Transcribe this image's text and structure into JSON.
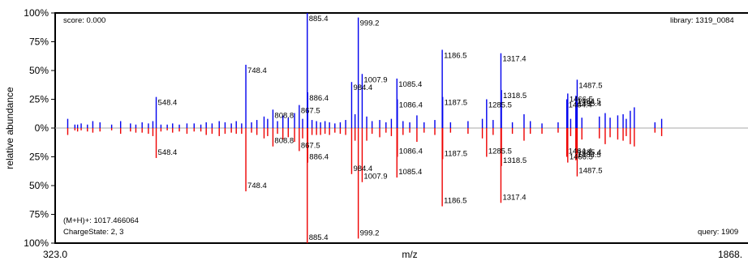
{
  "chart_data": {
    "type": "mirror-spectrum",
    "xlabel": "m/z",
    "ylabel": "relative abundance",
    "xlim": [
      323.0,
      1868.6
    ],
    "ylim": [
      -100,
      100
    ],
    "x_start_label": "323.0",
    "x_end_label": "1868.",
    "y_tick_labels": [
      "100%",
      "75%",
      "50%",
      "25%",
      "0%",
      "25%",
      "50%",
      "75%",
      "100%"
    ],
    "y_tick_values": [
      100,
      75,
      50,
      25,
      0,
      -25,
      -50,
      -75,
      -100
    ],
    "annotations": {
      "score": "score: 0.000",
      "library": "library: 1319_0084",
      "precursor": "(M+H)+: 1017.466064",
      "charge": "ChargeState: 2, 3",
      "query": "query: 1909"
    },
    "colors": {
      "library": "#0000ee",
      "query": "#ee0000",
      "axis": "#000000",
      "baseline": "#aaaaaa"
    },
    "library_peaks": [
      {
        "mz": 548.4,
        "i": 27,
        "label": "548.4"
      },
      {
        "mz": 748.4,
        "i": 55,
        "label": "748.4"
      },
      {
        "mz": 808.8,
        "i": 16,
        "label": "808.8"
      },
      {
        "mz": 867.5,
        "i": 20,
        "label": "867.5"
      },
      {
        "mz": 886.4,
        "i": 31,
        "label": "886.4"
      },
      {
        "mz": 885.4,
        "i": 100,
        "label": "885.4"
      },
      {
        "mz": 984.4,
        "i": 40,
        "label": "984.4"
      },
      {
        "mz": 999.2,
        "i": 96,
        "label": "999.2"
      },
      {
        "mz": 1007.9,
        "i": 47,
        "label": "1007.9"
      },
      {
        "mz": 1085.4,
        "i": 43,
        "label": "1085.4"
      },
      {
        "mz": 1086.4,
        "i": 25,
        "label": "1086.4"
      },
      {
        "mz": 1186.5,
        "i": 68,
        "label": "1186.5"
      },
      {
        "mz": 1187.5,
        "i": 27,
        "label": "1187.5"
      },
      {
        "mz": 1285.5,
        "i": 25,
        "label": "1285.5"
      },
      {
        "mz": 1317.4,
        "i": 65,
        "label": "1317.4"
      },
      {
        "mz": 1318.5,
        "i": 33,
        "label": "1318.5"
      },
      {
        "mz": 1464.4,
        "i": 25,
        "label": "1464.4"
      },
      {
        "mz": 1466.5,
        "i": 30,
        "label": "1466.5"
      },
      {
        "mz": 1484.5,
        "i": 28,
        "label": "1484.5"
      },
      {
        "mz": 1485.4,
        "i": 26,
        "label": "1485.4"
      },
      {
        "mz": 1487.5,
        "i": 42,
        "label": "1487.5"
      }
    ],
    "query_peaks": [
      {
        "mz": 548.4,
        "i": 26,
        "label": "548.4"
      },
      {
        "mz": 748.4,
        "i": 55,
        "label": "748.4"
      },
      {
        "mz": 808.8,
        "i": 16,
        "label": "808.8"
      },
      {
        "mz": 867.5,
        "i": 20,
        "label": "867.5"
      },
      {
        "mz": 886.4,
        "i": 30,
        "label": "886.4"
      },
      {
        "mz": 885.4,
        "i": 100,
        "label": "885.4"
      },
      {
        "mz": 984.4,
        "i": 40,
        "label": "984.4"
      },
      {
        "mz": 999.2,
        "i": 96,
        "label": "999.2"
      },
      {
        "mz": 1007.9,
        "i": 47,
        "label": "1007.9"
      },
      {
        "mz": 1085.4,
        "i": 43,
        "label": "1085.4"
      },
      {
        "mz": 1086.4,
        "i": 25,
        "label": "1086.4"
      },
      {
        "mz": 1186.5,
        "i": 68,
        "label": "1186.5"
      },
      {
        "mz": 1187.5,
        "i": 27,
        "label": "1187.5"
      },
      {
        "mz": 1285.5,
        "i": 25,
        "label": "1285.5"
      },
      {
        "mz": 1317.4,
        "i": 65,
        "label": "1317.4"
      },
      {
        "mz": 1318.5,
        "i": 33,
        "label": "1318.5"
      },
      {
        "mz": 1464.4,
        "i": 25,
        "label": "1464.4"
      },
      {
        "mz": 1466.5,
        "i": 30,
        "label": "1466.5"
      },
      {
        "mz": 1484.5,
        "i": 28,
        "label": "1484.5"
      },
      {
        "mz": 1485.4,
        "i": 26,
        "label": "1485.4"
      },
      {
        "mz": 1487.5,
        "i": 42,
        "label": "1487.5"
      }
    ],
    "minor_peaks": [
      {
        "mz": 351,
        "lib": 8,
        "qry": 6
      },
      {
        "mz": 367,
        "lib": 3,
        "qry": 2
      },
      {
        "mz": 373,
        "lib": 3,
        "qry": 3
      },
      {
        "mz": 381,
        "lib": 4,
        "qry": 2
      },
      {
        "mz": 395,
        "lib": 3,
        "qry": 3
      },
      {
        "mz": 407,
        "lib": 6,
        "qry": 4
      },
      {
        "mz": 423,
        "lib": 5,
        "qry": 3
      },
      {
        "mz": 449,
        "lib": 3,
        "qry": 2
      },
      {
        "mz": 469,
        "lib": 6,
        "qry": 5
      },
      {
        "mz": 491,
        "lib": 4,
        "qry": 3
      },
      {
        "mz": 503,
        "lib": 3,
        "qry": 4
      },
      {
        "mz": 517,
        "lib": 5,
        "qry": 4
      },
      {
        "mz": 531,
        "lib": 4,
        "qry": 5
      },
      {
        "mz": 541,
        "lib": 6,
        "qry": 7
      },
      {
        "mz": 559,
        "lib": 3,
        "qry": 3
      },
      {
        "mz": 573,
        "lib": 3,
        "qry": 2
      },
      {
        "mz": 585,
        "lib": 4,
        "qry": 4
      },
      {
        "mz": 600,
        "lib": 3,
        "qry": 3
      },
      {
        "mz": 617,
        "lib": 4,
        "qry": 5
      },
      {
        "mz": 633,
        "lib": 4,
        "qry": 3
      },
      {
        "mz": 648,
        "lib": 3,
        "qry": 3
      },
      {
        "mz": 660,
        "lib": 5,
        "qry": 6
      },
      {
        "mz": 673,
        "lib": 4,
        "qry": 5
      },
      {
        "mz": 689,
        "lib": 6,
        "qry": 7
      },
      {
        "mz": 702,
        "lib": 5,
        "qry": 5
      },
      {
        "mz": 716,
        "lib": 4,
        "qry": 4
      },
      {
        "mz": 727,
        "lib": 6,
        "qry": 5
      },
      {
        "mz": 739,
        "lib": 4,
        "qry": 5
      },
      {
        "mz": 761,
        "lib": 5,
        "qry": 4
      },
      {
        "mz": 773,
        "lib": 7,
        "qry": 6
      },
      {
        "mz": 789,
        "lib": 10,
        "qry": 9
      },
      {
        "mz": 797,
        "lib": 8,
        "qry": 7
      },
      {
        "mz": 819,
        "lib": 6,
        "qry": 5
      },
      {
        "mz": 831,
        "lib": 11,
        "qry": 10
      },
      {
        "mz": 843,
        "lib": 9,
        "qry": 8
      },
      {
        "mz": 857,
        "lib": 13,
        "qry": 12
      },
      {
        "mz": 875,
        "lib": 8,
        "qry": 9
      },
      {
        "mz": 896,
        "lib": 7,
        "qry": 6
      },
      {
        "mz": 906,
        "lib": 6,
        "qry": 6
      },
      {
        "mz": 915,
        "lib": 5,
        "qry": 6
      },
      {
        "mz": 925,
        "lib": 6,
        "qry": 5
      },
      {
        "mz": 935,
        "lib": 5,
        "qry": 6
      },
      {
        "mz": 947,
        "lib": 4,
        "qry": 4
      },
      {
        "mz": 959,
        "lib": 5,
        "qry": 5
      },
      {
        "mz": 971,
        "lib": 7,
        "qry": 6
      },
      {
        "mz": 992,
        "lib": 12,
        "qry": 11
      },
      {
        "mz": 1018,
        "lib": 10,
        "qry": 11
      },
      {
        "mz": 1030,
        "lib": 6,
        "qry": 5
      },
      {
        "mz": 1047,
        "lib": 7,
        "qry": 8
      },
      {
        "mz": 1061,
        "lib": 5,
        "qry": 4
      },
      {
        "mz": 1073,
        "lib": 8,
        "qry": 7
      },
      {
        "mz": 1099,
        "lib": 6,
        "qry": 6
      },
      {
        "mz": 1114,
        "lib": 5,
        "qry": 4
      },
      {
        "mz": 1130,
        "lib": 11,
        "qry": 12
      },
      {
        "mz": 1146,
        "lib": 5,
        "qry": 4
      },
      {
        "mz": 1170,
        "lib": 7,
        "qry": 6
      },
      {
        "mz": 1205,
        "lib": 5,
        "qry": 4
      },
      {
        "mz": 1244,
        "lib": 6,
        "qry": 5
      },
      {
        "mz": 1276,
        "lib": 8,
        "qry": 9
      },
      {
        "mz": 1300,
        "lib": 7,
        "qry": 6
      },
      {
        "mz": 1343,
        "lib": 5,
        "qry": 5
      },
      {
        "mz": 1369,
        "lib": 12,
        "qry": 11
      },
      {
        "mz": 1383,
        "lib": 6,
        "qry": 5
      },
      {
        "mz": 1409,
        "lib": 4,
        "qry": 5
      },
      {
        "mz": 1445,
        "lib": 5,
        "qry": 4
      },
      {
        "mz": 1473,
        "lib": 8,
        "qry": 7
      },
      {
        "mz": 1498,
        "lib": 9,
        "qry": 10
      },
      {
        "mz": 1537,
        "lib": 10,
        "qry": 9
      },
      {
        "mz": 1550,
        "lib": 13,
        "qry": 14
      },
      {
        "mz": 1561,
        "lib": 9,
        "qry": 8
      },
      {
        "mz": 1578,
        "lib": 11,
        "qry": 10
      },
      {
        "mz": 1590,
        "lib": 12,
        "qry": 11
      },
      {
        "mz": 1597,
        "lib": 8,
        "qry": 7
      },
      {
        "mz": 1606,
        "lib": 15,
        "qry": 14
      },
      {
        "mz": 1615,
        "lib": 18,
        "qry": 16
      },
      {
        "mz": 1661,
        "lib": 5,
        "qry": 4
      },
      {
        "mz": 1676,
        "lib": 8,
        "qry": 7
      }
    ]
  }
}
